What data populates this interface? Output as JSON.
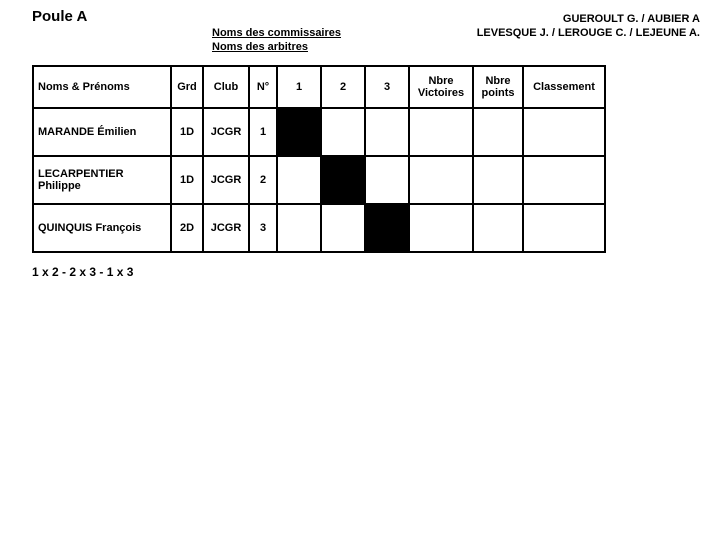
{
  "title": "Poule A",
  "labels": {
    "commissaires_label": "Noms des commissaires",
    "arbitres_label": "Noms des arbitres",
    "commissaires_value": "GUEROULT G. / AUBIER A",
    "arbitres_value": "LEVESQUE J. / LEROUGE C. / LEJEUNE A."
  },
  "columns": {
    "name": "Noms & Prénoms",
    "grd": "Grd",
    "club": "Club",
    "num": "N°",
    "m1": "1",
    "m2": "2",
    "m3": "3",
    "vict": "Nbre Victoires",
    "pts": "Nbre points",
    "rank": "Classement"
  },
  "rows": [
    {
      "name": "MARANDE Émilien",
      "grd": "1D",
      "club": "JCGR",
      "num": "1",
      "diag": 0
    },
    {
      "name": "LECARPENTIER Philippe",
      "grd": "1D",
      "club": "JCGR",
      "num": "2",
      "diag": 1
    },
    {
      "name": "QUINQUIS François",
      "grd": "2D",
      "club": "JCGR",
      "num": "3",
      "diag": 2
    }
  ],
  "order": "1 x 2   -   2 x 3   -   1 x 3"
}
